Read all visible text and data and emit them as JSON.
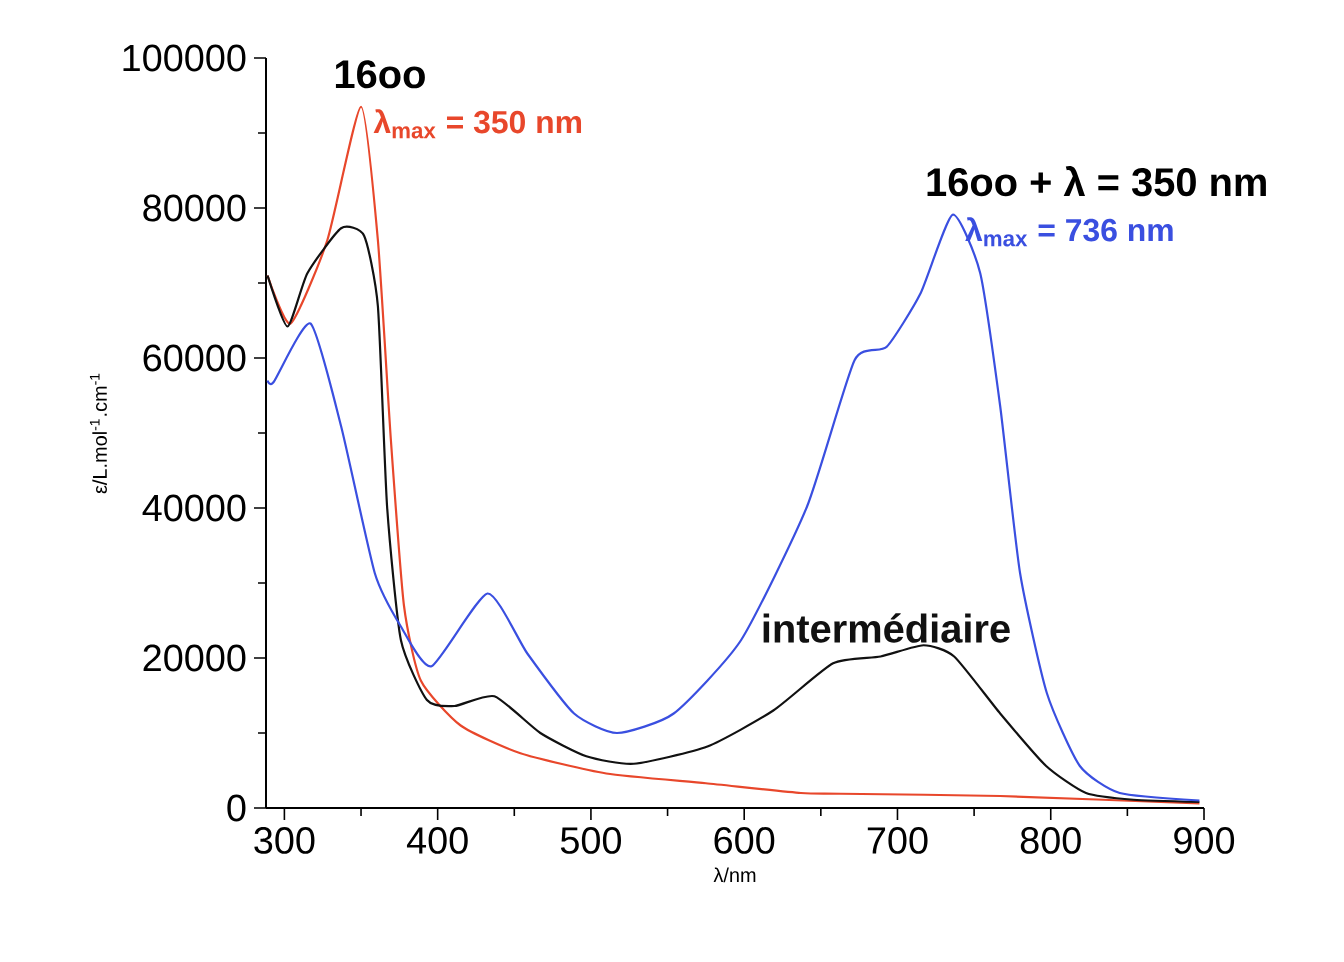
{
  "chart_data": {
    "type": "line",
    "xlabel": "λ/nm",
    "ylabel": "ε/L.mol$^{-1}$.cm$^{-1}$",
    "xlim": [
      288,
      900
    ],
    "ylim": [
      0,
      100000
    ],
    "xticks": [
      300,
      400,
      500,
      600,
      700,
      800,
      900
    ],
    "yticks": [
      0,
      20000,
      40000,
      60000,
      80000,
      100000
    ],
    "grid": false,
    "legend": false,
    "marker": "none",
    "line_style": "solid",
    "series": [
      {
        "color": "#e8472b",
        "x": [
          289,
          304,
          328,
          350,
          361,
          369.5,
          378,
          389,
          415,
          454,
          510,
          575,
          637,
          663,
          767,
          897
        ],
        "values": [
          71000,
          64600,
          75700,
          93500,
          75700,
          49000,
          27000,
          17000,
          11000,
          7300,
          4600,
          3300,
          2000,
          1900,
          1600,
          600
        ]
      },
      {
        "name": "intermédiaire",
        "color": "#111111",
        "x": [
          289,
          302,
          315,
          337,
          352,
          361,
          367,
          376,
          393,
          411,
          437,
          467,
          497,
          528,
          576,
          619,
          658,
          689,
          717,
          737,
          767,
          797,
          823,
          854,
          897
        ],
        "values": [
          71000,
          64200,
          71300,
          77300,
          76300,
          66900,
          40200,
          22400,
          14400,
          13600,
          14900,
          10000,
          6900,
          5900,
          8200,
          13000,
          19300,
          20200,
          21700,
          20200,
          12600,
          5600,
          2000,
          1100,
          800
        ]
      },
      {
        "color": "#3a4fe0",
        "x": [
          289,
          293,
          317,
          337,
          359,
          376,
          396,
          432.5,
          458.5,
          489,
          517,
          554,
          598,
          641,
          672,
          693,
          715,
          736,
          754,
          767,
          780,
          797.5,
          819,
          845,
          897
        ],
        "values": [
          57000,
          56800,
          64600,
          50900,
          31300,
          24200,
          18900,
          28600,
          20600,
          12600,
          10000,
          12600,
          22400,
          40200,
          59700,
          61500,
          68600,
          79100,
          71300,
          53600,
          31300,
          15300,
          5600,
          2000,
          1000
        ]
      }
    ],
    "annotations": [
      "16oo",
      {
        "text": "λ$_{max}$ = 350 nm",
        "x": 350,
        "y": 93500
      },
      "16oo + λ = 350 nm",
      {
        "text": "λ$_{max}$ = 736 nm",
        "x": 736,
        "y": 79100
      }
    ]
  }
}
